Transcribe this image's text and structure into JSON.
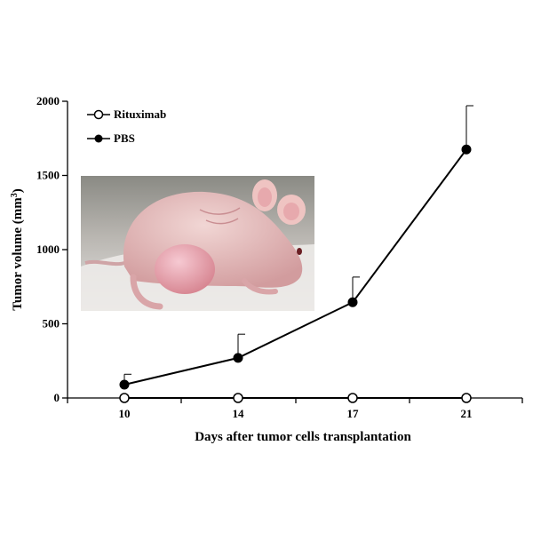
{
  "chart_data": {
    "type": "line",
    "x": [
      "10",
      "14",
      "17",
      "21"
    ],
    "xlabel": "Days after tumor cells transplantation",
    "ylabel_main": "Tumor volume (mm",
    "ylabel_sup": "3",
    "ylabel_end": ")",
    "ylim": [
      0,
      2000
    ],
    "yticks": [
      "0",
      "500",
      "1000",
      "1500",
      "2000"
    ],
    "grid": false,
    "legend_position": "top-left",
    "series": [
      {
        "name": "Rituximab",
        "marker": "open-circle",
        "values": [
          0,
          0,
          0,
          0
        ],
        "error_upper": [
          0,
          0,
          0,
          0
        ]
      },
      {
        "name": "PBS",
        "marker": "filled-circle",
        "values": [
          90,
          270,
          645,
          1675
        ],
        "error_upper": [
          160,
          430,
          815,
          1970
        ]
      }
    ],
    "inset_image": "nude mouse with subcutaneous tumor"
  }
}
